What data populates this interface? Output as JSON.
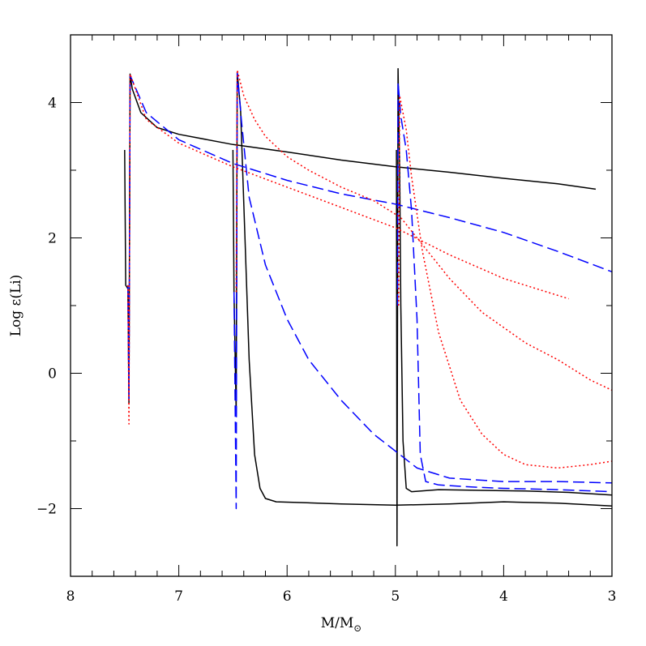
{
  "chart_data": {
    "type": "line",
    "title": "",
    "xlabel": "M/M",
    "xlabel_symbol": "⊙",
    "ylabel": "Log ε(Li)",
    "xlim": [
      8,
      3
    ],
    "ylim": [
      -3,
      5
    ],
    "x_ticks": [
      8,
      7,
      6,
      5,
      4,
      3
    ],
    "x_tick_labels": [
      "8",
      "7",
      "6",
      "5",
      "4",
      "3"
    ],
    "y_ticks": [
      -2,
      0,
      2,
      4
    ],
    "y_tick_labels": [
      "−2",
      "0",
      "2",
      "4"
    ],
    "grid": false,
    "legend": "none",
    "series": [
      {
        "color": "#000000",
        "dash": "solid",
        "points": [
          [
            7.5,
            3.3
          ],
          [
            7.49,
            1.3
          ],
          [
            7.47,
            1.25
          ],
          [
            7.46,
            -0.45
          ],
          [
            7.45,
            4.42
          ],
          [
            7.43,
            4.2
          ],
          [
            7.35,
            3.85
          ],
          [
            7.2,
            3.63
          ],
          [
            7.0,
            3.53
          ],
          [
            6.5,
            3.38
          ],
          [
            6.0,
            3.27
          ],
          [
            5.5,
            3.15
          ],
          [
            5.0,
            3.05
          ],
          [
            4.5,
            2.97
          ],
          [
            4.0,
            2.88
          ],
          [
            3.5,
            2.8
          ],
          [
            3.15,
            2.72
          ]
        ]
      },
      {
        "color": "#000000",
        "dash": "solid",
        "points": [
          [
            6.5,
            3.3
          ],
          [
            6.49,
            1.2
          ],
          [
            6.47,
            -0.6
          ],
          [
            6.46,
            4.45
          ],
          [
            6.43,
            3.9
          ],
          [
            6.4,
            2.5
          ],
          [
            6.35,
            0.2
          ],
          [
            6.3,
            -1.2
          ],
          [
            6.25,
            -1.7
          ],
          [
            6.2,
            -1.85
          ],
          [
            6.1,
            -1.9
          ],
          [
            5.5,
            -1.93
          ],
          [
            5.0,
            -1.95
          ],
          [
            4.5,
            -1.93
          ],
          [
            4.0,
            -1.9
          ],
          [
            3.5,
            -1.92
          ],
          [
            3.0,
            -1.96
          ]
        ]
      },
      {
        "color": "#000000",
        "dash": "solid",
        "points": [
          [
            4.99,
            3.3
          ],
          [
            4.985,
            -2.55
          ],
          [
            4.975,
            4.5
          ],
          [
            4.96,
            3.0
          ],
          [
            4.95,
            1.0
          ],
          [
            4.93,
            -1.0
          ],
          [
            4.9,
            -1.7
          ],
          [
            4.85,
            -1.75
          ],
          [
            4.6,
            -1.72
          ],
          [
            4.2,
            -1.73
          ],
          [
            3.8,
            -1.74
          ],
          [
            3.4,
            -1.76
          ],
          [
            3.0,
            -1.8
          ]
        ]
      },
      {
        "color": "#0000ff",
        "dash": "dashed",
        "points": [
          [
            7.47,
            1.3
          ],
          [
            7.46,
            -0.4
          ],
          [
            7.45,
            4.4
          ],
          [
            7.3,
            3.85
          ],
          [
            7.0,
            3.45
          ],
          [
            6.5,
            3.1
          ],
          [
            6.0,
            2.85
          ],
          [
            5.5,
            2.65
          ],
          [
            5.0,
            2.5
          ],
          [
            4.5,
            2.3
          ],
          [
            4.0,
            2.08
          ],
          [
            3.5,
            1.8
          ],
          [
            3.0,
            1.5
          ]
        ]
      },
      {
        "color": "#0000ff",
        "dash": "dashed",
        "points": [
          [
            6.49,
            1.2
          ],
          [
            6.47,
            -2.0
          ],
          [
            6.46,
            4.45
          ],
          [
            6.42,
            3.7
          ],
          [
            6.35,
            2.6
          ],
          [
            6.2,
            1.6
          ],
          [
            6.0,
            0.8
          ],
          [
            5.8,
            0.2
          ],
          [
            5.5,
            -0.4
          ],
          [
            5.2,
            -0.9
          ],
          [
            5.0,
            -1.15
          ],
          [
            4.8,
            -1.4
          ],
          [
            4.5,
            -1.55
          ],
          [
            4.0,
            -1.6
          ],
          [
            3.5,
            -1.6
          ],
          [
            3.0,
            -1.62
          ]
        ]
      },
      {
        "color": "#0000ff",
        "dash": "dashed",
        "points": [
          [
            4.98,
            1.0
          ],
          [
            4.975,
            4.3
          ],
          [
            4.95,
            3.8
          ],
          [
            4.9,
            3.3
          ],
          [
            4.85,
            2.4
          ],
          [
            4.8,
            0.8
          ],
          [
            4.77,
            -1.2
          ],
          [
            4.72,
            -1.6
          ],
          [
            4.6,
            -1.65
          ],
          [
            4.3,
            -1.68
          ],
          [
            4.0,
            -1.7
          ],
          [
            3.5,
            -1.72
          ],
          [
            3.0,
            -1.75
          ]
        ]
      },
      {
        "color": "#ff0000",
        "dash": "dotted",
        "points": [
          [
            7.47,
            1.3
          ],
          [
            7.46,
            -0.75
          ],
          [
            7.45,
            4.42
          ],
          [
            7.3,
            3.75
          ],
          [
            7.0,
            3.4
          ],
          [
            6.5,
            3.05
          ],
          [
            6.0,
            2.75
          ],
          [
            5.5,
            2.45
          ],
          [
            5.0,
            2.15
          ],
          [
            4.5,
            1.75
          ],
          [
            4.0,
            1.4
          ],
          [
            3.4,
            1.1
          ]
        ]
      },
      {
        "color": "#ff0000",
        "dash": "dotted",
        "points": [
          [
            6.47,
            1.2
          ],
          [
            6.46,
            4.48
          ],
          [
            6.4,
            4.1
          ],
          [
            6.3,
            3.75
          ],
          [
            6.2,
            3.5
          ],
          [
            6.0,
            3.2
          ],
          [
            5.8,
            3.0
          ],
          [
            5.5,
            2.75
          ],
          [
            5.2,
            2.55
          ],
          [
            4.95,
            2.3
          ],
          [
            4.8,
            2.0
          ],
          [
            4.5,
            1.4
          ],
          [
            4.2,
            0.9
          ],
          [
            3.8,
            0.45
          ],
          [
            3.5,
            0.2
          ],
          [
            3.2,
            -0.1
          ],
          [
            3.0,
            -0.25
          ]
        ]
      },
      {
        "color": "#ff0000",
        "dash": "dotted",
        "points": [
          [
            4.97,
            1.0
          ],
          [
            4.96,
            4.1
          ],
          [
            4.9,
            3.6
          ],
          [
            4.85,
            2.9
          ],
          [
            4.75,
            1.8
          ],
          [
            4.6,
            0.6
          ],
          [
            4.4,
            -0.4
          ],
          [
            4.2,
            -0.9
          ],
          [
            4.0,
            -1.2
          ],
          [
            3.8,
            -1.35
          ],
          [
            3.5,
            -1.4
          ],
          [
            3.2,
            -1.35
          ],
          [
            3.0,
            -1.3
          ]
        ]
      }
    ]
  }
}
